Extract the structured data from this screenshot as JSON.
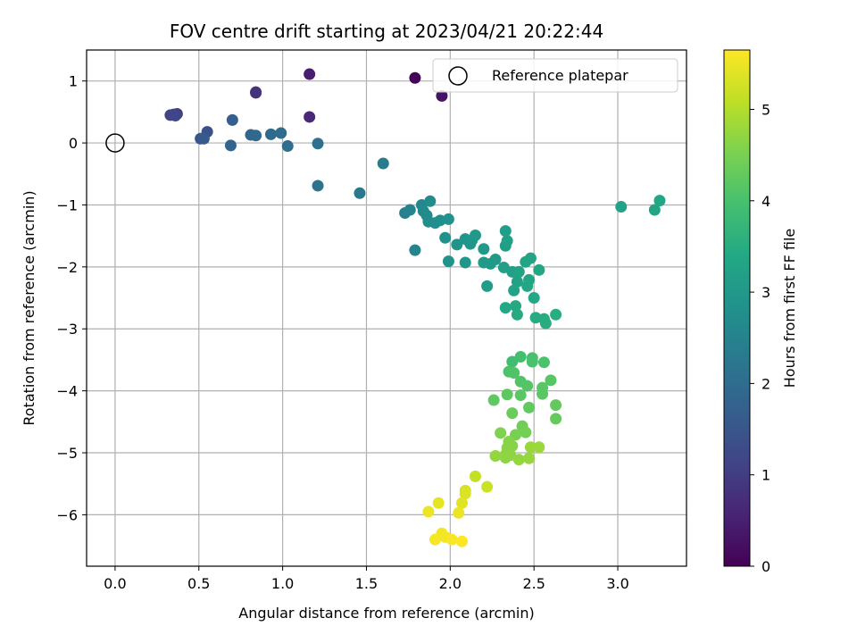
{
  "chart_data": {
    "type": "scatter",
    "title": "FOV centre drift starting at 2023/04/21 20:22:44",
    "xlabel": "Angular distance from reference (arcmin)",
    "ylabel": "Rotation from reference (arcmin)",
    "xlim": [
      -0.17,
      3.41
    ],
    "ylim": [
      -6.83,
      1.5
    ],
    "xticks": [
      0.0,
      0.5,
      1.0,
      1.5,
      2.0,
      2.5,
      3.0
    ],
    "xtick_labels": [
      "0.0",
      "0.5",
      "1.0",
      "1.5",
      "2.0",
      "2.5",
      "3.0"
    ],
    "yticks": [
      1,
      0,
      -1,
      -2,
      -3,
      -4,
      -5,
      -6
    ],
    "ytick_labels": [
      "1",
      "0",
      "−1",
      "−2",
      "−3",
      "−4",
      "−5",
      "−6"
    ],
    "grid": true,
    "colormap": "viridis",
    "colorbar": {
      "label": "Hours from first FF file",
      "range": [
        0,
        5.65
      ],
      "ticks": [
        0,
        1,
        2,
        3,
        4,
        5
      ],
      "tick_labels": [
        "0",
        "1",
        "2",
        "3",
        "4",
        "5"
      ]
    },
    "reference": {
      "x": 0.0,
      "y": 0.0,
      "label": "Reference platepar"
    },
    "legend": {
      "position": "top-right",
      "entries": [
        "Reference platepar"
      ]
    },
    "points": [
      [
        1.79,
        1.05,
        0.05
      ],
      [
        1.95,
        0.76,
        0.3
      ],
      [
        1.16,
        1.11,
        0.45
      ],
      [
        1.16,
        0.42,
        0.65
      ],
      [
        0.84,
        0.81,
        0.75
      ],
      [
        0.84,
        0.82,
        0.85
      ],
      [
        0.37,
        0.47,
        1.0
      ],
      [
        0.35,
        0.46,
        1.1
      ],
      [
        0.33,
        0.45,
        1.15
      ],
      [
        0.36,
        0.44,
        1.2
      ],
      [
        0.55,
        0.18,
        1.4
      ],
      [
        0.51,
        0.07,
        1.5
      ],
      [
        0.53,
        0.07,
        1.6
      ],
      [
        0.7,
        0.37,
        1.7
      ],
      [
        0.69,
        -0.04,
        1.8
      ],
      [
        0.81,
        0.13,
        1.85
      ],
      [
        0.84,
        0.12,
        1.9
      ],
      [
        0.93,
        0.14,
        1.95
      ],
      [
        0.99,
        0.16,
        2.0
      ],
      [
        1.03,
        -0.05,
        2.05
      ],
      [
        1.21,
        -0.01,
        2.1
      ],
      [
        1.21,
        -0.69,
        2.15
      ],
      [
        1.46,
        -0.81,
        2.25
      ],
      [
        1.6,
        -0.33,
        2.35
      ],
      [
        1.73,
        -1.13,
        2.45
      ],
      [
        1.76,
        -1.08,
        2.5
      ],
      [
        1.79,
        -1.73,
        2.55
      ],
      [
        1.83,
        -1.0,
        2.6
      ],
      [
        1.84,
        -1.1,
        2.65
      ],
      [
        1.86,
        -1.17,
        2.7
      ],
      [
        1.88,
        -0.94,
        2.72
      ],
      [
        1.87,
        -1.27,
        2.75
      ],
      [
        1.91,
        -1.29,
        2.78
      ],
      [
        1.94,
        -1.25,
        2.8
      ],
      [
        1.97,
        -1.53,
        2.82
      ],
      [
        1.99,
        -1.23,
        2.85
      ],
      [
        1.99,
        -1.91,
        2.88
      ],
      [
        2.04,
        -1.64,
        2.9
      ],
      [
        2.09,
        -1.55,
        2.92
      ],
      [
        2.09,
        -1.93,
        2.94
      ],
      [
        2.12,
        -1.63,
        2.96
      ],
      [
        2.13,
        -1.57,
        2.98
      ],
      [
        2.15,
        -1.49,
        3.0
      ],
      [
        2.2,
        -1.71,
        3.02
      ],
      [
        2.2,
        -1.93,
        3.04
      ],
      [
        2.24,
        -1.95,
        3.06
      ],
      [
        2.27,
        -1.88,
        3.08
      ],
      [
        2.22,
        -2.31,
        3.1
      ],
      [
        2.33,
        -1.42,
        3.12
      ],
      [
        2.33,
        -1.66,
        3.14
      ],
      [
        2.34,
        -1.58,
        3.16
      ],
      [
        2.32,
        -2.01,
        3.18
      ],
      [
        2.37,
        -2.08,
        3.2
      ],
      [
        2.4,
        -2.24,
        3.22
      ],
      [
        2.38,
        -2.38,
        3.24
      ],
      [
        2.41,
        -2.08,
        3.26
      ],
      [
        2.45,
        -1.92,
        3.28
      ],
      [
        2.48,
        -1.86,
        3.3
      ],
      [
        2.47,
        -2.21,
        3.32
      ],
      [
        2.46,
        -2.31,
        3.34
      ],
      [
        2.53,
        -2.05,
        3.36
      ],
      [
        2.5,
        -2.5,
        3.38
      ],
      [
        2.33,
        -2.66,
        3.4
      ],
      [
        2.39,
        -2.63,
        3.42
      ],
      [
        2.4,
        -2.77,
        3.44
      ],
      [
        2.51,
        -2.82,
        3.46
      ],
      [
        2.56,
        -2.84,
        3.48
      ],
      [
        2.57,
        -2.91,
        3.5
      ],
      [
        2.63,
        -2.77,
        3.52
      ],
      [
        3.02,
        -1.03,
        3.25
      ],
      [
        3.22,
        -1.08,
        3.3
      ],
      [
        3.25,
        -0.93,
        3.35
      ],
      [
        2.37,
        -3.53,
        3.9
      ],
      [
        2.42,
        -3.45,
        3.95
      ],
      [
        2.49,
        -3.47,
        4.0
      ],
      [
        2.49,
        -3.53,
        4.02
      ],
      [
        2.56,
        -3.54,
        4.04
      ],
      [
        2.35,
        -3.69,
        4.06
      ],
      [
        2.38,
        -3.71,
        4.08
      ],
      [
        2.42,
        -3.85,
        4.1
      ],
      [
        2.46,
        -3.92,
        4.12
      ],
      [
        2.6,
        -3.83,
        4.14
      ],
      [
        2.55,
        -3.95,
        4.16
      ],
      [
        2.55,
        -4.05,
        4.18
      ],
      [
        2.42,
        -4.07,
        4.2
      ],
      [
        2.34,
        -4.06,
        4.22
      ],
      [
        2.26,
        -4.15,
        4.24
      ],
      [
        2.47,
        -4.27,
        4.26
      ],
      [
        2.63,
        -4.23,
        4.28
      ],
      [
        2.63,
        -4.45,
        4.3
      ],
      [
        2.37,
        -4.36,
        4.35
      ],
      [
        2.43,
        -4.57,
        4.4
      ],
      [
        2.45,
        -4.67,
        4.45
      ],
      [
        2.39,
        -4.71,
        4.5
      ],
      [
        2.3,
        -4.68,
        4.55
      ],
      [
        2.35,
        -4.82,
        4.6
      ],
      [
        2.37,
        -4.89,
        4.62
      ],
      [
        2.34,
        -4.92,
        4.64
      ],
      [
        2.33,
        -5.03,
        4.66
      ],
      [
        2.33,
        -5.08,
        4.68
      ],
      [
        2.36,
        -5.04,
        4.7
      ],
      [
        2.27,
        -5.05,
        4.72
      ],
      [
        2.41,
        -5.11,
        4.74
      ],
      [
        2.47,
        -5.09,
        4.76
      ],
      [
        2.48,
        -4.91,
        4.78
      ],
      [
        2.53,
        -4.91,
        4.8
      ],
      [
        2.15,
        -5.38,
        5.15
      ],
      [
        2.22,
        -5.55,
        5.2
      ],
      [
        2.09,
        -5.61,
        5.3
      ],
      [
        2.09,
        -5.66,
        5.35
      ],
      [
        2.07,
        -5.81,
        5.4
      ],
      [
        1.93,
        -5.81,
        5.45
      ],
      [
        2.05,
        -5.97,
        5.5
      ],
      [
        1.87,
        -5.95,
        5.5
      ],
      [
        1.95,
        -6.3,
        5.55
      ],
      [
        1.97,
        -6.36,
        5.55
      ],
      [
        1.91,
        -6.4,
        5.6
      ],
      [
        2.01,
        -6.4,
        5.6
      ],
      [
        2.07,
        -6.43,
        5.65
      ]
    ]
  }
}
